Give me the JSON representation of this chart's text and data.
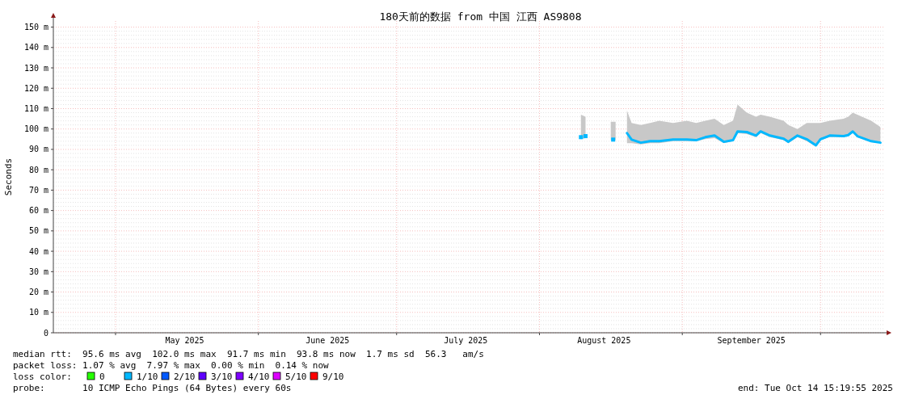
{
  "chart_data": {
    "type": "line",
    "title": "180天前的数据 from 中国 江西 AS9808",
    "ylabel": "Seconds",
    "x": [
      "2025-08-10",
      "2025-08-11",
      "2025-08-13",
      "2025-08-17",
      "2025-08-18",
      "2025-08-20",
      "2025-08-21",
      "2025-08-23",
      "2025-08-25",
      "2025-08-27",
      "2025-08-30",
      "2025-09-02",
      "2025-09-04",
      "2025-09-06",
      "2025-09-08",
      "2025-09-10",
      "2025-09-12",
      "2025-09-13",
      "2025-09-15",
      "2025-09-17",
      "2025-09-18",
      "2025-09-20",
      "2025-09-23",
      "2025-09-24",
      "2025-09-26",
      "2025-09-28",
      "2025-09-30",
      "2025-10-01",
      "2025-10-03",
      "2025-10-06",
      "2025-10-07",
      "2025-10-08",
      "2025-10-09",
      "2025-10-12",
      "2025-10-14"
    ],
    "series": [
      {
        "color": "#00b8ff",
        "values": [
          null,
          null,
          null,
          null,
          null,
          98,
          94.8,
          93.3,
          94,
          94,
          94.8,
          94.8,
          94.5,
          96,
          96.8,
          93.7,
          94.5,
          98.8,
          98.5,
          96.8,
          98.8,
          96.8,
          95.2,
          93.7,
          96.8,
          95,
          92,
          95,
          96.8,
          96.5,
          97,
          98.8,
          96.5,
          94,
          93.3
        ],
        "lower": [
          95,
          95.5,
          null,
          94.5,
          null,
          93,
          93,
          92.5,
          93,
          93,
          94,
          94,
          94,
          95,
          95.5,
          93,
          94,
          98,
          97.5,
          96,
          98,
          96,
          94.5,
          93,
          96,
          94,
          91.5,
          94.5,
          96,
          96,
          96.5,
          98,
          96,
          93.5,
          93
        ],
        "upper": [
          107,
          106,
          null,
          103.6,
          null,
          109,
          103,
          102,
          103,
          104,
          103,
          104,
          103,
          104,
          105,
          102,
          104,
          112,
          108,
          106,
          107,
          106,
          104,
          102,
          100,
          103,
          103,
          103,
          104,
          105,
          106,
          108,
          107,
          104,
          101
        ]
      },
      {
        "type": "scatter",
        "marker": "square",
        "color": "#00b8ff",
        "x": [
          "2025-08-10",
          "2025-08-11",
          "2025-08-17"
        ],
        "values": [
          96,
          96.5,
          94.8
        ]
      }
    ],
    "xlim": [
      "2025-04-17T12:00",
      "2025-10-14T15:19"
    ],
    "xticks": [
      {
        "value": "2025-05-01",
        "label": null
      },
      {
        "value": "2025-05-16",
        "label": "May 2025"
      },
      {
        "value": "2025-06-01",
        "label": null
      },
      {
        "value": "2025-06-16",
        "label": "June 2025"
      },
      {
        "value": "2025-07-01",
        "label": null
      },
      {
        "value": "2025-07-16",
        "label": "July 2025"
      },
      {
        "value": "2025-08-01",
        "label": null
      },
      {
        "value": "2025-08-15",
        "label": "August 2025"
      },
      {
        "value": "2025-09-01",
        "label": null
      },
      {
        "value": "2025-09-16",
        "label": "September 2025"
      },
      {
        "value": "2025-10-01",
        "label": null
      }
    ],
    "ylim": [
      0,
      153
    ],
    "yticks": [
      0,
      {
        "value": 10,
        "label": "10 m"
      },
      {
        "value": 20,
        "label": "20 m"
      },
      {
        "value": 30,
        "label": "30 m"
      },
      {
        "value": 40,
        "label": "40 m"
      },
      {
        "value": 50,
        "label": "50 m"
      },
      {
        "value": 60,
        "label": "60 m"
      },
      {
        "value": 70,
        "label": "70 m"
      },
      {
        "value": 80,
        "label": "80 m"
      },
      {
        "value": 90,
        "label": "90 m"
      },
      {
        "value": 100,
        "label": "100 m"
      },
      {
        "value": 110,
        "label": "110 m"
      },
      {
        "value": 120,
        "label": "120 m"
      },
      {
        "value": 130,
        "label": "130 m"
      },
      {
        "value": 140,
        "label": "140 m"
      },
      {
        "value": 150,
        "label": "150 m"
      }
    ],
    "grid": true,
    "line_style": "solid",
    "annotations": [
      "median rtt:  95.6 ms avg  102.0 ms max  91.7 ms min  93.8 ms now  1.7 ms sd  56.3   am/s",
      "packet loss: 1.07 % avg  7.97 % max  0.00 % min  0.14 % now",
      "loss color:",
      "0",
      "1/10",
      "2/10",
      "3/10",
      "4/10",
      "5/10",
      "9/10",
      "probe:       10 ICMP Echo Pings (64 Bytes) every 60s",
      "end: Tue Oct 14 15:19:55 2025"
    ]
  }
}
